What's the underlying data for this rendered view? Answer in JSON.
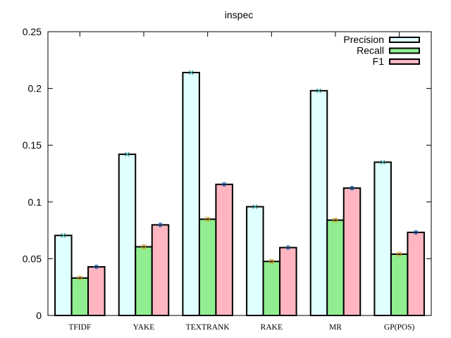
{
  "chart_data": {
    "type": "bar",
    "title": "inspec",
    "xlabel": "",
    "ylabel": "",
    "categories": [
      "TFIDF",
      "YAKE",
      "TEXTRANK",
      "RAKE",
      "MR",
      "GP(POS)"
    ],
    "ylim": [
      0,
      0.25
    ],
    "yticks": [
      "0",
      "0.05",
      "0.1",
      "0.15",
      "0.2",
      "0.25"
    ],
    "legend_position": "top-right",
    "series": [
      {
        "name": "Precision",
        "color": "#e0ffff",
        "marker_color": "#2aa198",
        "marker": "x",
        "values": [
          0.0705,
          0.142,
          0.214,
          0.0958,
          0.198,
          0.135
        ]
      },
      {
        "name": "Recall",
        "color": "#90ee90",
        "marker_color": "#d4a017",
        "marker": "square",
        "values": [
          0.033,
          0.0605,
          0.0848,
          0.0476,
          0.084,
          0.054
        ]
      },
      {
        "name": "F1",
        "color": "#ffb6c1",
        "marker_color": "#1e5fb4",
        "marker": "circle",
        "values": [
          0.0428,
          0.0798,
          0.1155,
          0.0598,
          0.1122,
          0.0732
        ]
      }
    ]
  }
}
